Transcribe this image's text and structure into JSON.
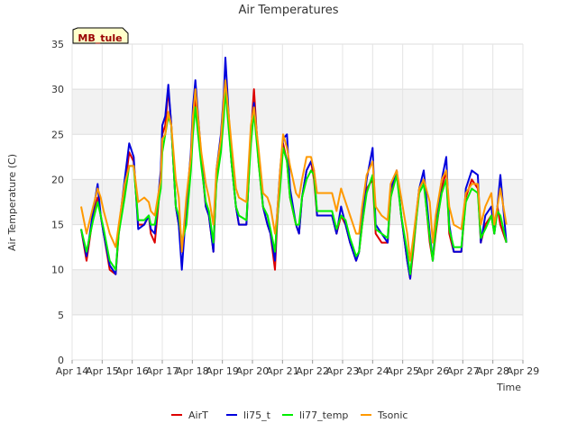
{
  "chart_data": {
    "type": "line",
    "title": "Air Temperatures",
    "xlabel": "Time",
    "ylabel": "Air Temperature (C)",
    "station_label": "MB_tule",
    "ylim": [
      0,
      35
    ],
    "yticks": [
      0,
      5,
      10,
      15,
      20,
      25,
      30,
      35
    ],
    "xlim": [
      0,
      15
    ],
    "xticks": [
      {
        "v": 0,
        "label": "Apr 14"
      },
      {
        "v": 1,
        "label": "Apr 15"
      },
      {
        "v": 2,
        "label": "Apr 16"
      },
      {
        "v": 3,
        "label": "Apr 17"
      },
      {
        "v": 4,
        "label": "Apr 18"
      },
      {
        "v": 5,
        "label": "Apr 19"
      },
      {
        "v": 6,
        "label": "Apr 20"
      },
      {
        "v": 7,
        "label": "Apr 21"
      },
      {
        "v": 8,
        "label": "Apr 22"
      },
      {
        "v": 9,
        "label": "Apr 23"
      },
      {
        "v": 10,
        "label": "Apr 24"
      },
      {
        "v": 11,
        "label": "Apr 25"
      },
      {
        "v": 12,
        "label": "Apr 26"
      },
      {
        "v": 13,
        "label": "Apr 27"
      },
      {
        "v": 14,
        "label": "Apr 28"
      },
      {
        "v": 15,
        "label": "Apr 29"
      }
    ],
    "series": [
      {
        "name": "AirT",
        "color": "#dd0000",
        "x": [
          0.3,
          0.48,
          0.7,
          0.85,
          0.95,
          1.05,
          1.25,
          1.45,
          1.55,
          1.75,
          1.9,
          2.05,
          2.2,
          2.4,
          2.55,
          2.62,
          2.75,
          2.95,
          3.0,
          3.1,
          3.2,
          3.3,
          3.45,
          3.55,
          3.65,
          3.8,
          3.95,
          4.02,
          4.1,
          4.3,
          4.45,
          4.55,
          4.7,
          4.8,
          4.95,
          5.05,
          5.1,
          5.3,
          5.45,
          5.55,
          5.8,
          5.95,
          6.05,
          6.2,
          6.35,
          6.5,
          6.6,
          6.75,
          6.82,
          6.92,
          7.02,
          7.15,
          7.25,
          7.45,
          7.55,
          7.65,
          7.8,
          7.95,
          8.05,
          8.15,
          8.25,
          8.45,
          8.65,
          8.8,
          8.95,
          9.1,
          9.25,
          9.35,
          9.45,
          9.55,
          9.65,
          9.8,
          10.0,
          10.1,
          10.3,
          10.5,
          10.6,
          10.8,
          10.95,
          11.15,
          11.25,
          11.35,
          11.55,
          11.7,
          11.9,
          12.0,
          12.1,
          12.3,
          12.45,
          12.55,
          12.7,
          12.95,
          13.1,
          13.3,
          13.5,
          13.6,
          13.75,
          13.95,
          14.05,
          14.15,
          14.25,
          14.45
        ],
        "y": [
          14.5,
          11,
          16,
          18,
          16,
          14,
          10,
          9.5,
          14,
          19,
          23,
          22,
          15,
          15,
          16,
          14,
          13,
          20,
          25,
          26,
          30,
          26,
          17,
          15,
          12,
          16,
          22,
          26,
          29,
          22,
          17,
          16,
          12,
          20,
          24,
          28,
          31,
          22,
          17,
          15,
          15,
          25,
          30,
          22,
          17,
          15,
          14,
          10,
          15,
          20,
          24,
          22,
          18,
          15,
          14,
          18,
          21,
          22,
          20,
          16,
          16,
          16,
          16,
          14,
          16,
          15,
          13,
          12,
          11,
          12,
          15,
          19,
          20,
          14,
          13,
          13,
          18,
          21,
          16,
          11,
          9,
          12,
          19,
          20,
          13,
          11,
          14,
          19,
          21,
          14,
          12,
          12,
          18,
          20,
          19,
          13,
          15,
          16,
          14,
          17,
          15,
          13
        ]
      },
      {
        "name": "li75_t",
        "color": "#0000dd",
        "x": [
          0.3,
          0.48,
          0.7,
          0.85,
          0.95,
          1.05,
          1.25,
          1.45,
          1.55,
          1.75,
          1.9,
          2.05,
          2.2,
          2.4,
          2.55,
          2.62,
          2.75,
          2.95,
          3.0,
          3.1,
          3.2,
          3.3,
          3.45,
          3.55,
          3.65,
          3.8,
          3.95,
          4.02,
          4.1,
          4.3,
          4.45,
          4.55,
          4.7,
          4.8,
          4.95,
          5.05,
          5.1,
          5.3,
          5.45,
          5.55,
          5.8,
          5.95,
          6.05,
          6.2,
          6.35,
          6.5,
          6.6,
          6.75,
          6.82,
          6.92,
          7.02,
          7.15,
          7.25,
          7.45,
          7.55,
          7.65,
          7.8,
          7.95,
          8.05,
          8.15,
          8.25,
          8.45,
          8.65,
          8.8,
          8.95,
          9.1,
          9.25,
          9.35,
          9.45,
          9.55,
          9.65,
          9.8,
          10.0,
          10.1,
          10.3,
          10.5,
          10.6,
          10.8,
          10.95,
          11.15,
          11.25,
          11.35,
          11.55,
          11.7,
          11.9,
          12.0,
          12.1,
          12.3,
          12.45,
          12.55,
          12.7,
          12.95,
          13.1,
          13.3,
          13.5,
          13.6,
          13.75,
          13.95,
          14.05,
          14.15,
          14.25,
          14.45
        ],
        "y": [
          14.5,
          11.5,
          16.5,
          19.5,
          16,
          14,
          10.5,
          9.5,
          14.5,
          20,
          24,
          22.5,
          14.5,
          15,
          16,
          14.5,
          14,
          21,
          26,
          27,
          30.5,
          26,
          17,
          15,
          10,
          17,
          23,
          28,
          31,
          22.5,
          17,
          16,
          12,
          21,
          25,
          29.5,
          33.5,
          22,
          17,
          15,
          15,
          25.5,
          28.5,
          23,
          17,
          15,
          14,
          11,
          16,
          21,
          24.5,
          25,
          19,
          15,
          14,
          18,
          21,
          22,
          21,
          16,
          16,
          16,
          16,
          14,
          17,
          15,
          13,
          12,
          11,
          12,
          16,
          20,
          23.5,
          15,
          14,
          13,
          19,
          21,
          16,
          11,
          9,
          13,
          19,
          21,
          14,
          11,
          15,
          20,
          22.5,
          15,
          12,
          12,
          19,
          21,
          20.5,
          13,
          16,
          17,
          14,
          17,
          20.5,
          13
        ]
      },
      {
        "name": "li77_temp",
        "color": "#00ee00",
        "x": [
          0.3,
          0.48,
          0.7,
          0.85,
          0.95,
          1.05,
          1.25,
          1.45,
          1.55,
          1.75,
          1.9,
          2.05,
          2.2,
          2.4,
          2.55,
          2.62,
          2.75,
          2.95,
          3.0,
          3.1,
          3.2,
          3.3,
          3.45,
          3.55,
          3.65,
          3.8,
          3.95,
          4.02,
          4.1,
          4.3,
          4.45,
          4.55,
          4.7,
          4.8,
          4.95,
          5.05,
          5.1,
          5.3,
          5.45,
          5.55,
          5.8,
          5.95,
          6.05,
          6.2,
          6.35,
          6.5,
          6.6,
          6.75,
          6.82,
          6.92,
          7.02,
          7.15,
          7.25,
          7.45,
          7.55,
          7.65,
          7.8,
          7.95,
          8.05,
          8.15,
          8.25,
          8.45,
          8.65,
          8.8,
          8.95,
          9.1,
          9.25,
          9.35,
          9.45,
          9.55,
          9.65,
          9.8,
          10.0,
          10.1,
          10.3,
          10.5,
          10.6,
          10.8,
          10.95,
          11.15,
          11.25,
          11.35,
          11.55,
          11.7,
          11.9,
          12.0,
          12.1,
          12.3,
          12.45,
          12.55,
          12.7,
          12.95,
          13.1,
          13.3,
          13.5,
          13.6,
          13.75,
          13.95,
          14.05,
          14.15,
          14.25,
          14.45
        ],
        "y": [
          14.5,
          12,
          15.5,
          17.5,
          16,
          14.5,
          11,
          10,
          14,
          18,
          21.5,
          21.5,
          15.5,
          15.5,
          16,
          15,
          15,
          19,
          23,
          25,
          27,
          26,
          17,
          16,
          13,
          15,
          21,
          25,
          28,
          21.5,
          17.5,
          16.5,
          13,
          19.5,
          23,
          27,
          30,
          22,
          17,
          16,
          15.5,
          24,
          27.5,
          22,
          17,
          16,
          14.5,
          12,
          15.5,
          19,
          23.5,
          22,
          18,
          15,
          15,
          18,
          20,
          21,
          20.5,
          16.5,
          16.5,
          16.5,
          16.5,
          14.5,
          16,
          15.5,
          13.5,
          12.5,
          11.5,
          12,
          15,
          18.5,
          20.5,
          14.5,
          14,
          13.5,
          18,
          20.5,
          16,
          12,
          9.5,
          12.5,
          18.5,
          19.5,
          13.5,
          11,
          14.5,
          18.5,
          20,
          14.5,
          12.5,
          12.5,
          17.5,
          19,
          18.5,
          13.5,
          14.5,
          16,
          14,
          16.5,
          16,
          13
        ]
      },
      {
        "name": "Tsonic",
        "color": "#ff9900",
        "x": [
          0.3,
          0.48,
          0.7,
          0.85,
          0.95,
          1.05,
          1.25,
          1.45,
          1.55,
          1.75,
          1.9,
          2.05,
          2.2,
          2.4,
          2.55,
          2.62,
          2.75,
          2.95,
          3.0,
          3.1,
          3.2,
          3.3,
          3.45,
          3.55,
          3.65,
          3.8,
          3.95,
          4.02,
          4.1,
          4.3,
          4.45,
          4.55,
          4.7,
          4.8,
          4.95,
          5.05,
          5.1,
          5.3,
          5.45,
          5.55,
          5.8,
          5.95,
          6.05,
          6.2,
          6.35,
          6.5,
          6.6,
          6.75,
          6.82,
          6.92,
          7.02,
          7.15,
          7.25,
          7.45,
          7.55,
          7.65,
          7.8,
          7.95,
          8.05,
          8.15,
          8.25,
          8.45,
          8.65,
          8.8,
          8.95,
          9.1,
          9.25,
          9.35,
          9.45,
          9.55,
          9.65,
          9.8,
          10.0,
          10.1,
          10.3,
          10.5,
          10.6,
          10.8,
          10.95,
          11.15,
          11.25,
          11.35,
          11.55,
          11.7,
          11.9,
          12.0,
          12.1,
          12.3,
          12.45,
          12.55,
          12.7,
          12.95,
          13.1,
          13.3,
          13.5,
          13.6,
          13.75,
          13.95,
          14.05,
          14.15,
          14.25,
          14.45
        ],
        "y": [
          17,
          14,
          17,
          19,
          18,
          16.5,
          14,
          12.5,
          15,
          19.5,
          21.5,
          21.5,
          17.5,
          18,
          17.5,
          16.5,
          16,
          20,
          24.5,
          25,
          27.5,
          26,
          20,
          18,
          12,
          18,
          22.5,
          27,
          30,
          23,
          19.5,
          18,
          15,
          21,
          24.5,
          29,
          31,
          24,
          19,
          18,
          17.5,
          26,
          28,
          23.5,
          18.5,
          18,
          17,
          14,
          16,
          21,
          25,
          23.5,
          21.5,
          18.5,
          18,
          20,
          22.5,
          22.5,
          21,
          18.5,
          18.5,
          18.5,
          18.5,
          16.5,
          19,
          17.5,
          16,
          15,
          14,
          14,
          17,
          20.5,
          22,
          17,
          16,
          15.5,
          19.5,
          21,
          18,
          14,
          11,
          13.5,
          19,
          20,
          17.5,
          13,
          16,
          20,
          21,
          17,
          15,
          14.5,
          18.5,
          19.5,
          19.5,
          15,
          17,
          18.5,
          15,
          17,
          19,
          15
        ]
      }
    ]
  }
}
